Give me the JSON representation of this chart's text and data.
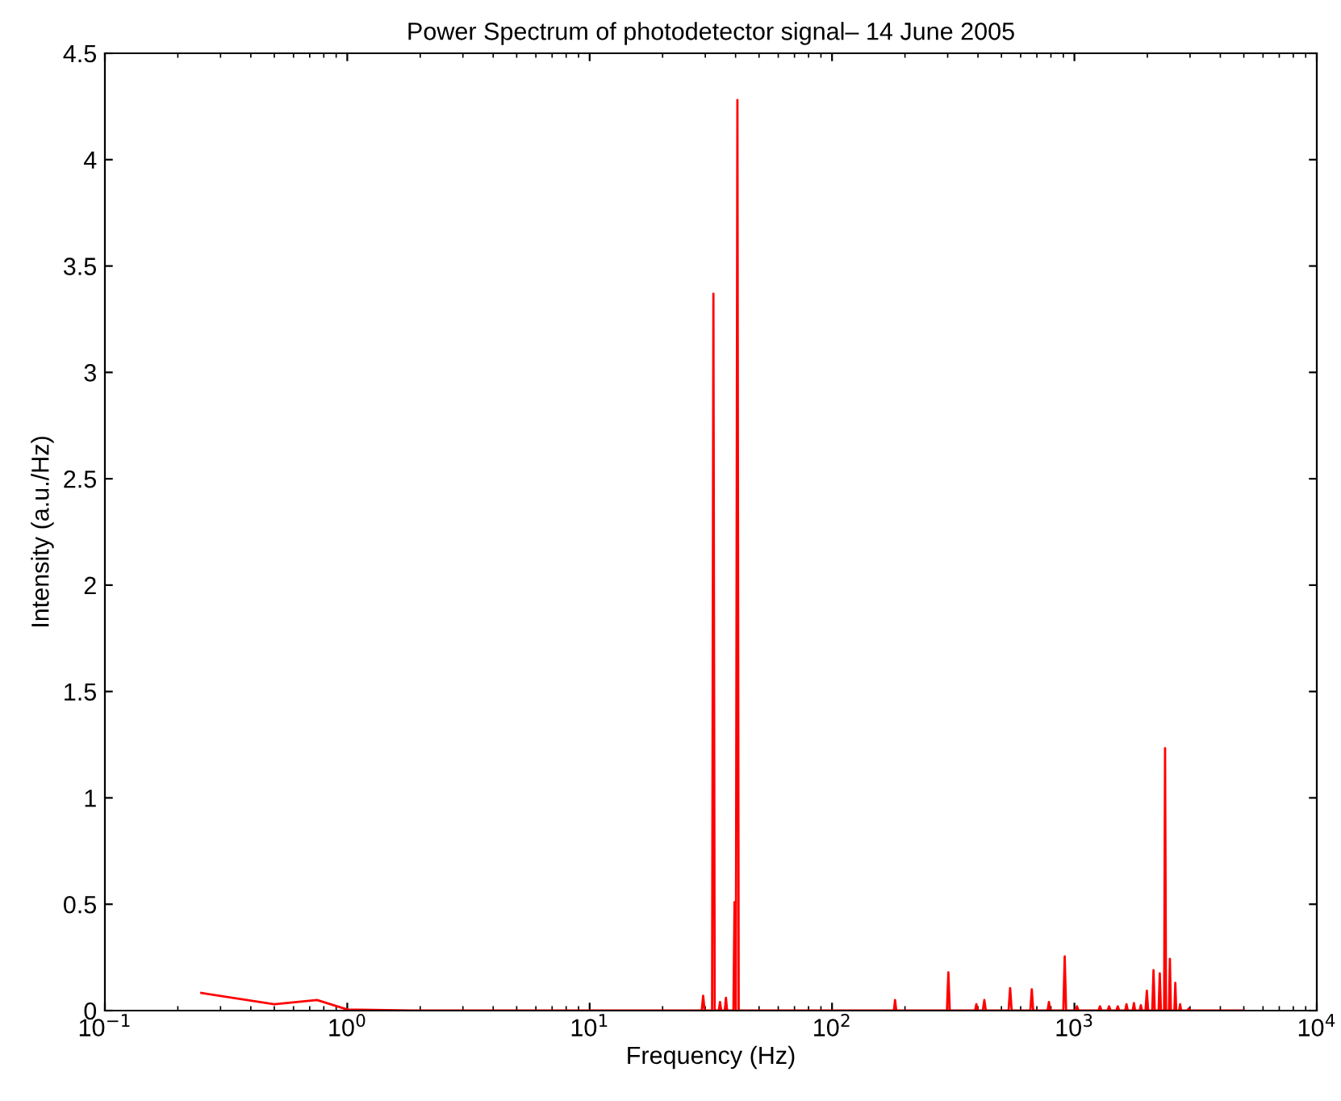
{
  "chart_data": {
    "type": "line",
    "title": "Power Spectrum of photodetector signal– 14 June 2005",
    "xlabel": "Frequency (Hz)",
    "ylabel": "Intensity (a.u./Hz)",
    "log": "x",
    "grid": false,
    "marker": "none",
    "line_style": "solid",
    "xlim": [
      0.1,
      10000
    ],
    "xticks": [
      {
        "value": 0.1,
        "label": "10$^{−1}$"
      },
      {
        "value": 1,
        "label": "10$^{0}$"
      },
      {
        "value": 10,
        "label": "10$^{1}$"
      },
      {
        "value": 100,
        "label": "10$^{2}$"
      },
      {
        "value": 1000,
        "label": "10$^{3}$"
      },
      {
        "value": 10000,
        "label": "10$^{4}$"
      }
    ],
    "ylim": [
      0,
      4.5
    ],
    "yticks": [
      0,
      0.5,
      1,
      1.5,
      2,
      2.5,
      3,
      3.5,
      4,
      4.5
    ],
    "series": [
      {
        "color": "#ff0000",
        "x": [
          0.25,
          0.5,
          0.75,
          1.0,
          2,
          20,
          29.0,
          29.4,
          29.8,
          32.0,
          32.4,
          32.8,
          34.1,
          34.5,
          34.9,
          36.1,
          36.5,
          36.9,
          39.2,
          39.6,
          40.1,
          40.7,
          41.2,
          100,
          180,
          182,
          184,
          298,
          302,
          306,
          389,
          394,
          399,
          419,
          425,
          431,
          535,
          543,
          551,
          658,
          667,
          676,
          775,
          785,
          795,
          900,
          912,
          924,
          1010,
          1025,
          1040,
          1257,
          1275,
          1293,
          1370,
          1390,
          1410,
          1490,
          1510,
          1530,
          1620,
          1640,
          1660,
          1740,
          1760,
          1780,
          1860,
          1880,
          1900,
          1965,
          1990,
          2015,
          2095,
          2120,
          2145,
          2225,
          2250,
          2275,
          2345,
          2366,
          2388,
          2455,
          2477,
          2500,
          2585,
          2608,
          2630,
          2705,
          2730,
          2755,
          2930,
          2960,
          2990,
          5000
        ],
        "values": [
          0.083,
          0.03,
          0.05,
          0.005,
          0,
          0,
          0,
          0.07,
          0,
          0,
          3.37,
          0,
          0,
          0.04,
          0,
          0,
          0.06,
          0,
          0,
          0.51,
          0,
          4.28,
          0,
          0,
          0,
          0.05,
          0,
          0,
          0.18,
          0,
          0,
          0.03,
          0,
          0,
          0.05,
          0,
          0,
          0.106,
          0,
          0,
          0.1,
          0,
          0,
          0.04,
          0,
          0,
          0.255,
          0,
          0,
          0.02,
          0,
          0,
          0.02,
          0,
          0,
          0.02,
          0,
          0,
          0.02,
          0,
          0,
          0.03,
          0,
          0,
          0.035,
          0,
          0,
          0.025,
          0,
          0,
          0.093,
          0,
          0,
          0.19,
          0,
          0,
          0.175,
          0,
          0,
          1.234,
          0,
          0,
          0.243,
          0,
          0,
          0.13,
          0,
          0,
          0.03,
          0,
          0,
          0.01,
          0,
          0
        ]
      }
    ]
  }
}
